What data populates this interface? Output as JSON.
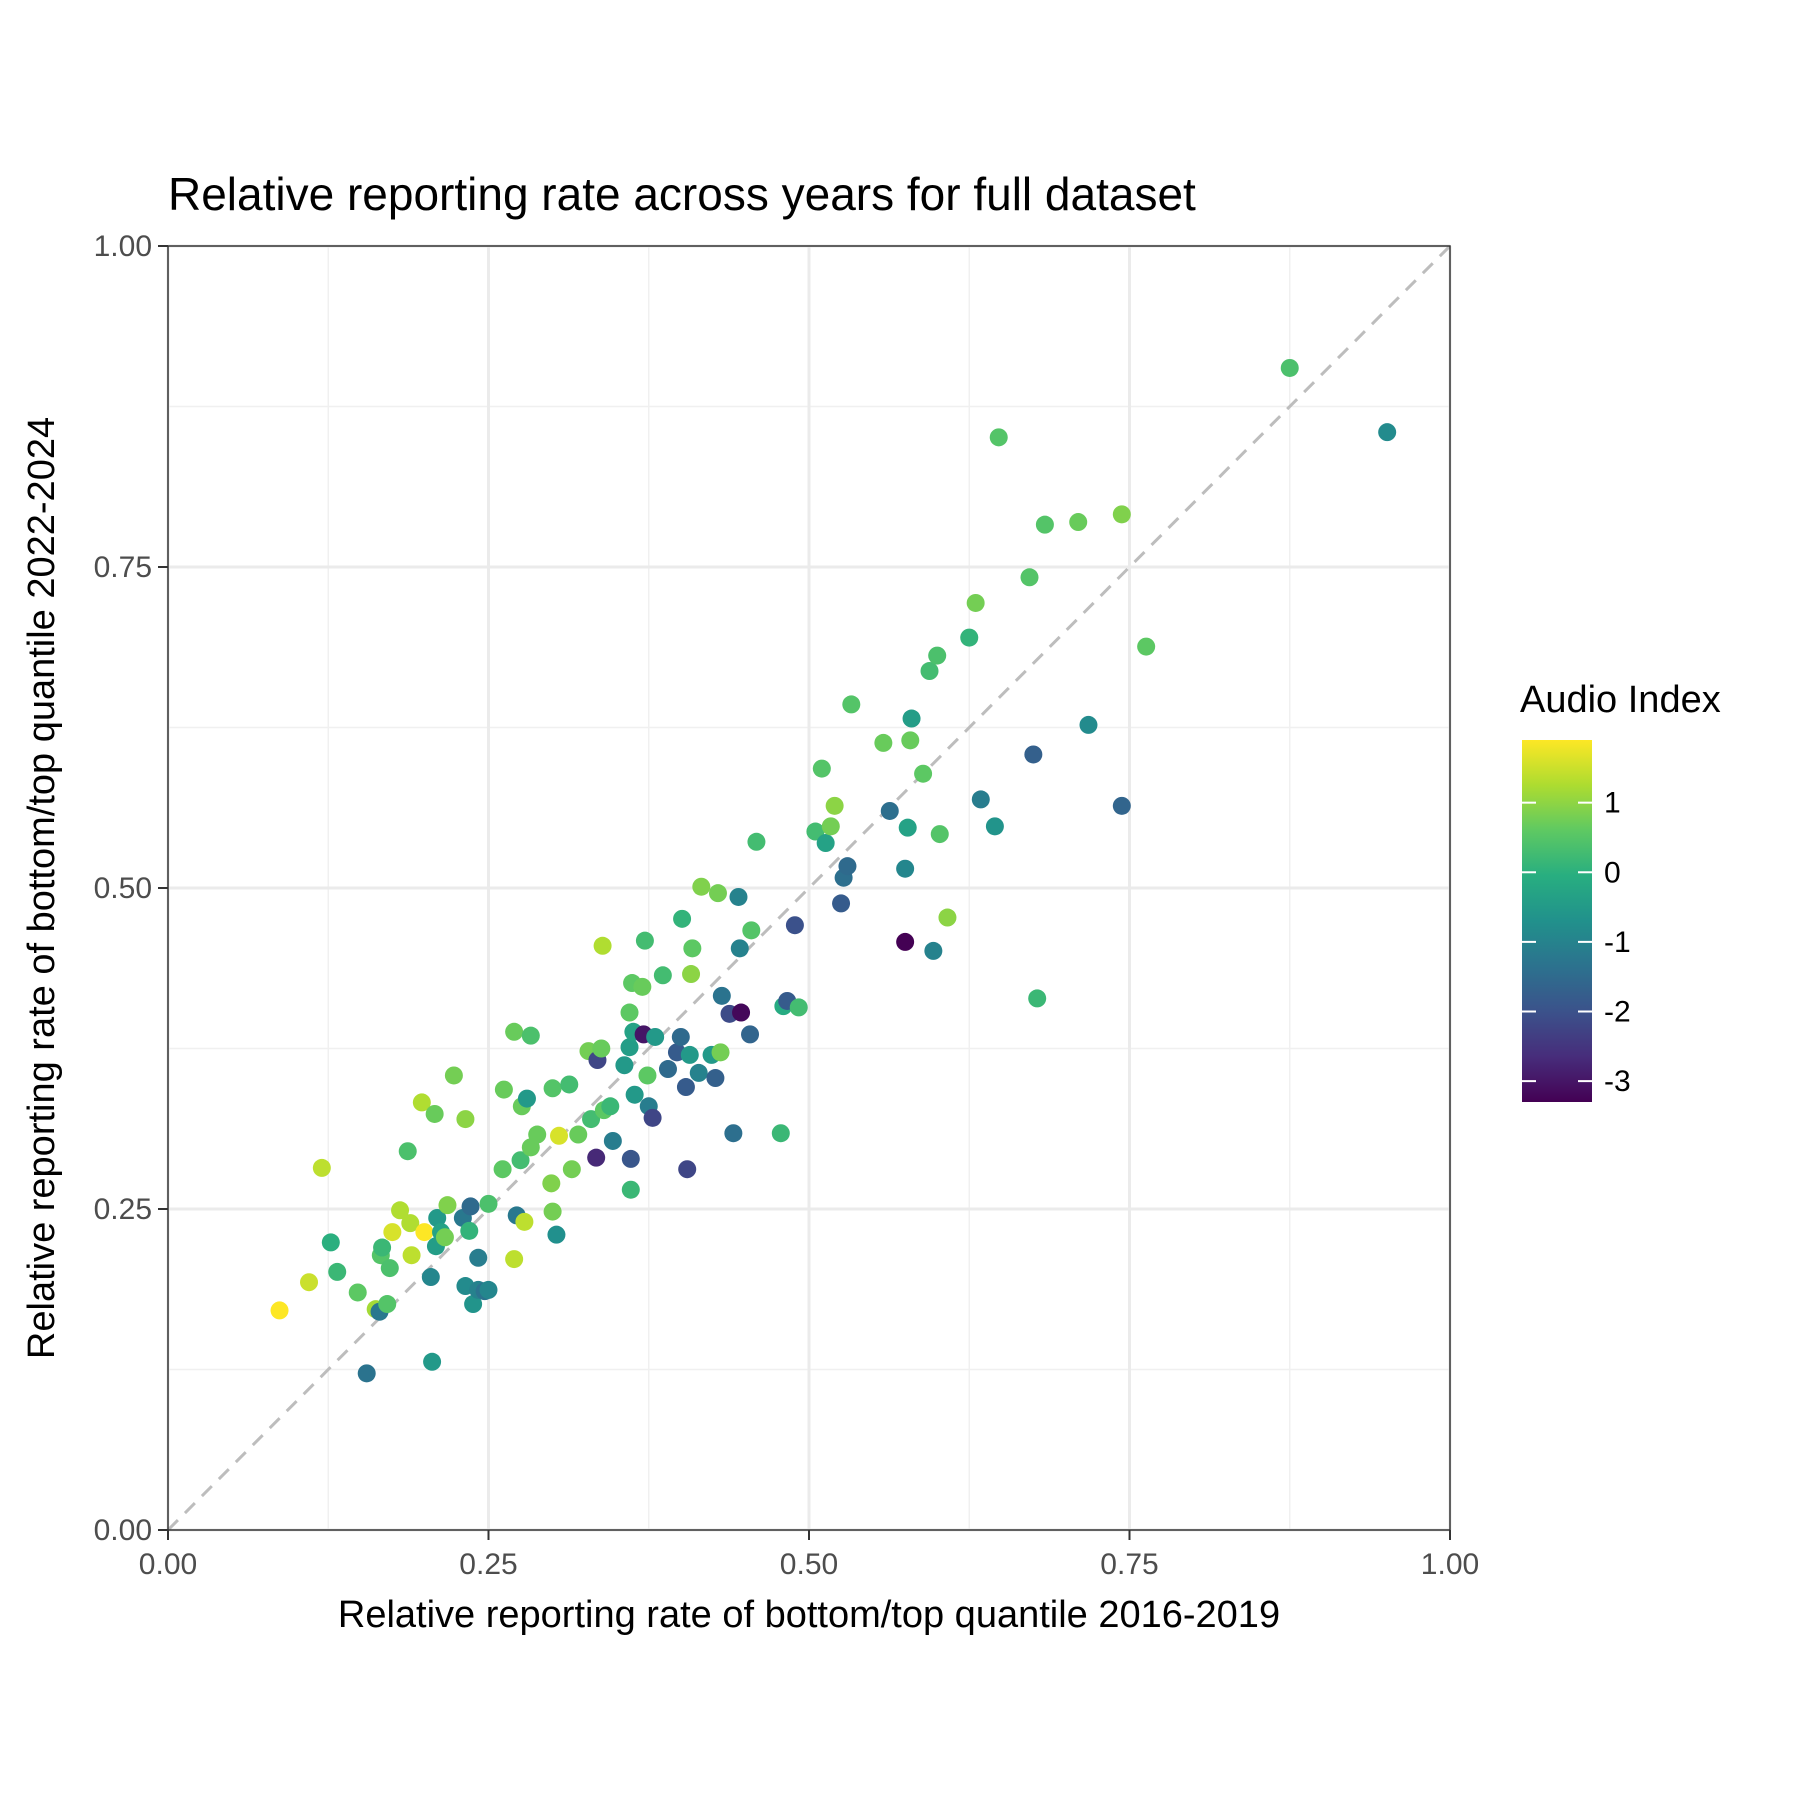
{
  "chart_data": {
    "type": "scatter",
    "title": "Relative reporting rate across years for full dataset",
    "xlabel": "Relative reporting rate of bottom/top quantile 2016-2019",
    "ylabel": "Relative reporting rate of bottom/top quantile 2022-2024",
    "xlim": [
      0,
      1
    ],
    "ylim": [
      0,
      1
    ],
    "x_ticks": [
      0,
      0.25,
      0.5,
      0.75,
      1
    ],
    "y_ticks": [
      0,
      0.25,
      0.5,
      0.75,
      1
    ],
    "x_tick_labels": [
      "0.00",
      "0.25",
      "0.50",
      "0.75",
      "1.00"
    ],
    "y_tick_labels": [
      "0.00",
      "0.25",
      "0.50",
      "0.75",
      "1.00"
    ],
    "grid": true,
    "theme": "bw",
    "reference_line": {
      "slope": 1,
      "intercept": 0,
      "style": "dashed",
      "color": "#bdbdbd"
    },
    "legend": {
      "title": "Audio Index",
      "position": "right",
      "type": "continuous colorbar",
      "palette": "viridis",
      "range": [
        -3.3,
        1.9
      ],
      "ticks": [
        1,
        0,
        -1,
        -2,
        -3
      ],
      "tick_labels": [
        "1",
        "0",
        "-1",
        "-2",
        "-3"
      ]
    },
    "points": [
      {
        "x": 0.087,
        "y": 0.171,
        "c": 1.9
      },
      {
        "x": 0.11,
        "y": 0.193,
        "c": 1.5
      },
      {
        "x": 0.12,
        "y": 0.282,
        "c": 1.4
      },
      {
        "x": 0.127,
        "y": 0.224,
        "c": 0.0
      },
      {
        "x": 0.132,
        "y": 0.201,
        "c": 0.2
      },
      {
        "x": 0.148,
        "y": 0.185,
        "c": 0.6
      },
      {
        "x": 0.155,
        "y": 0.122,
        "c": -1.3
      },
      {
        "x": 0.162,
        "y": 0.172,
        "c": 1.2
      },
      {
        "x": 0.165,
        "y": 0.17,
        "c": -1.2
      },
      {
        "x": 0.166,
        "y": 0.214,
        "c": 0.5
      },
      {
        "x": 0.167,
        "y": 0.22,
        "c": 0.2
      },
      {
        "x": 0.171,
        "y": 0.176,
        "c": 0.5
      },
      {
        "x": 0.173,
        "y": 0.204,
        "c": 0.4
      },
      {
        "x": 0.175,
        "y": 0.232,
        "c": 1.6
      },
      {
        "x": 0.181,
        "y": 0.249,
        "c": 1.3
      },
      {
        "x": 0.187,
        "y": 0.295,
        "c": 0.4
      },
      {
        "x": 0.189,
        "y": 0.239,
        "c": 1.3
      },
      {
        "x": 0.19,
        "y": 0.214,
        "c": 1.4
      },
      {
        "x": 0.198,
        "y": 0.333,
        "c": 1.3
      },
      {
        "x": 0.2,
        "y": 0.232,
        "c": 1.9
      },
      {
        "x": 0.205,
        "y": 0.197,
        "c": -0.9
      },
      {
        "x": 0.206,
        "y": 0.131,
        "c": -0.5
      },
      {
        "x": 0.208,
        "y": 0.324,
        "c": 0.7
      },
      {
        "x": 0.209,
        "y": 0.221,
        "c": -0.4
      },
      {
        "x": 0.21,
        "y": 0.243,
        "c": -0.5
      },
      {
        "x": 0.213,
        "y": 0.232,
        "c": -0.3
      },
      {
        "x": 0.216,
        "y": 0.228,
        "c": 0.8
      },
      {
        "x": 0.218,
        "y": 0.253,
        "c": 0.9
      },
      {
        "x": 0.223,
        "y": 0.354,
        "c": 0.8
      },
      {
        "x": 0.23,
        "y": 0.243,
        "c": -1.2
      },
      {
        "x": 0.232,
        "y": 0.19,
        "c": -0.8
      },
      {
        "x": 0.232,
        "y": 0.32,
        "c": 1.0
      },
      {
        "x": 0.235,
        "y": 0.233,
        "c": 0.1
      },
      {
        "x": 0.236,
        "y": 0.252,
        "c": -1.5
      },
      {
        "x": 0.238,
        "y": 0.176,
        "c": -0.6
      },
      {
        "x": 0.242,
        "y": 0.212,
        "c": -1.1
      },
      {
        "x": 0.242,
        "y": 0.187,
        "c": -1.0
      },
      {
        "x": 0.247,
        "y": 0.186,
        "c": -1.3
      },
      {
        "x": 0.25,
        "y": 0.187,
        "c": -0.9
      },
      {
        "x": 0.25,
        "y": 0.254,
        "c": 0.4
      },
      {
        "x": 0.261,
        "y": 0.281,
        "c": 0.6
      },
      {
        "x": 0.262,
        "y": 0.343,
        "c": 0.7
      },
      {
        "x": 0.27,
        "y": 0.211,
        "c": 1.4
      },
      {
        "x": 0.27,
        "y": 0.388,
        "c": 0.7
      },
      {
        "x": 0.272,
        "y": 0.245,
        "c": -1.2
      },
      {
        "x": 0.275,
        "y": 0.288,
        "c": 0.3
      },
      {
        "x": 0.276,
        "y": 0.33,
        "c": 0.7
      },
      {
        "x": 0.278,
        "y": 0.24,
        "c": 1.4
      },
      {
        "x": 0.28,
        "y": 0.336,
        "c": -0.5
      },
      {
        "x": 0.283,
        "y": 0.385,
        "c": 0.4
      },
      {
        "x": 0.283,
        "y": 0.298,
        "c": 0.7
      },
      {
        "x": 0.288,
        "y": 0.308,
        "c": 0.7
      },
      {
        "x": 0.299,
        "y": 0.27,
        "c": 0.9
      },
      {
        "x": 0.3,
        "y": 0.248,
        "c": 0.8
      },
      {
        "x": 0.3,
        "y": 0.344,
        "c": 0.5
      },
      {
        "x": 0.303,
        "y": 0.23,
        "c": -0.7
      },
      {
        "x": 0.305,
        "y": 0.307,
        "c": 1.6
      },
      {
        "x": 0.313,
        "y": 0.347,
        "c": 0.3
      },
      {
        "x": 0.315,
        "y": 0.281,
        "c": 0.8
      },
      {
        "x": 0.32,
        "y": 0.308,
        "c": 0.7
      },
      {
        "x": 0.328,
        "y": 0.373,
        "c": 0.8
      },
      {
        "x": 0.33,
        "y": 0.32,
        "c": 0.3
      },
      {
        "x": 0.334,
        "y": 0.29,
        "c": -2.7
      },
      {
        "x": 0.335,
        "y": 0.366,
        "c": -2.2
      },
      {
        "x": 0.338,
        "y": 0.375,
        "c": 0.7
      },
      {
        "x": 0.339,
        "y": 0.455,
        "c": 1.3
      },
      {
        "x": 0.34,
        "y": 0.327,
        "c": 0.6
      },
      {
        "x": 0.345,
        "y": 0.33,
        "c": 0.2
      },
      {
        "x": 0.347,
        "y": 0.303,
        "c": -1.1
      },
      {
        "x": 0.356,
        "y": 0.362,
        "c": -0.5
      },
      {
        "x": 0.36,
        "y": 0.403,
        "c": 0.6
      },
      {
        "x": 0.36,
        "y": 0.376,
        "c": -0.4
      },
      {
        "x": 0.361,
        "y": 0.289,
        "c": -1.9
      },
      {
        "x": 0.361,
        "y": 0.265,
        "c": 0.2
      },
      {
        "x": 0.362,
        "y": 0.426,
        "c": 0.6
      },
      {
        "x": 0.363,
        "y": 0.388,
        "c": -0.3
      },
      {
        "x": 0.364,
        "y": 0.339,
        "c": -0.5
      },
      {
        "x": 0.37,
        "y": 0.423,
        "c": 0.7
      },
      {
        "x": 0.371,
        "y": 0.386,
        "c": -3.0
      },
      {
        "x": 0.372,
        "y": 0.459,
        "c": 0.3
      },
      {
        "x": 0.374,
        "y": 0.354,
        "c": 0.6
      },
      {
        "x": 0.375,
        "y": 0.33,
        "c": -1.1
      },
      {
        "x": 0.378,
        "y": 0.321,
        "c": -2.2
      },
      {
        "x": 0.38,
        "y": 0.384,
        "c": -0.5
      },
      {
        "x": 0.386,
        "y": 0.432,
        "c": 0.3
      },
      {
        "x": 0.39,
        "y": 0.359,
        "c": -1.5
      },
      {
        "x": 0.397,
        "y": 0.372,
        "c": -1.8
      },
      {
        "x": 0.4,
        "y": 0.384,
        "c": -1.5
      },
      {
        "x": 0.401,
        "y": 0.476,
        "c": 0.1
      },
      {
        "x": 0.404,
        "y": 0.345,
        "c": -1.8
      },
      {
        "x": 0.405,
        "y": 0.281,
        "c": -2.2
      },
      {
        "x": 0.407,
        "y": 0.37,
        "c": -0.5
      },
      {
        "x": 0.408,
        "y": 0.433,
        "c": 1.0
      },
      {
        "x": 0.409,
        "y": 0.453,
        "c": 0.6
      },
      {
        "x": 0.414,
        "y": 0.356,
        "c": -1.0
      },
      {
        "x": 0.416,
        "y": 0.501,
        "c": 0.9
      },
      {
        "x": 0.424,
        "y": 0.37,
        "c": -0.5
      },
      {
        "x": 0.427,
        "y": 0.352,
        "c": -1.7
      },
      {
        "x": 0.429,
        "y": 0.496,
        "c": 0.8
      },
      {
        "x": 0.431,
        "y": 0.372,
        "c": 0.8
      },
      {
        "x": 0.432,
        "y": 0.416,
        "c": -1.3
      },
      {
        "x": 0.438,
        "y": 0.402,
        "c": -2.1
      },
      {
        "x": 0.441,
        "y": 0.309,
        "c": -1.4
      },
      {
        "x": 0.445,
        "y": 0.493,
        "c": -1.0
      },
      {
        "x": 0.446,
        "y": 0.453,
        "c": -1.0
      },
      {
        "x": 0.447,
        "y": 0.403,
        "c": -3.2
      },
      {
        "x": 0.454,
        "y": 0.386,
        "c": -1.6
      },
      {
        "x": 0.455,
        "y": 0.467,
        "c": 0.5
      },
      {
        "x": 0.459,
        "y": 0.536,
        "c": 0.3
      },
      {
        "x": 0.478,
        "y": 0.309,
        "c": 0.2
      },
      {
        "x": 0.48,
        "y": 0.408,
        "c": -0.1
      },
      {
        "x": 0.483,
        "y": 0.412,
        "c": -1.8
      },
      {
        "x": 0.489,
        "y": 0.471,
        "c": -2.0
      },
      {
        "x": 0.492,
        "y": 0.407,
        "c": 0.3
      },
      {
        "x": 0.505,
        "y": 0.544,
        "c": 0.3
      },
      {
        "x": 0.51,
        "y": 0.593,
        "c": 0.5
      },
      {
        "x": 0.513,
        "y": 0.535,
        "c": -0.3
      },
      {
        "x": 0.517,
        "y": 0.548,
        "c": 0.8
      },
      {
        "x": 0.52,
        "y": 0.564,
        "c": 1.0
      },
      {
        "x": 0.525,
        "y": 0.488,
        "c": -1.8
      },
      {
        "x": 0.527,
        "y": 0.508,
        "c": -1.4
      },
      {
        "x": 0.53,
        "y": 0.517,
        "c": -1.5
      },
      {
        "x": 0.533,
        "y": 0.643,
        "c": 0.5
      },
      {
        "x": 0.558,
        "y": 0.613,
        "c": 0.7
      },
      {
        "x": 0.563,
        "y": 0.56,
        "c": -1.4
      },
      {
        "x": 0.575,
        "y": 0.458,
        "c": -3.3
      },
      {
        "x": 0.575,
        "y": 0.515,
        "c": -0.9
      },
      {
        "x": 0.577,
        "y": 0.547,
        "c": -0.3
      },
      {
        "x": 0.579,
        "y": 0.615,
        "c": 0.7
      },
      {
        "x": 0.58,
        "y": 0.632,
        "c": -0.4
      },
      {
        "x": 0.589,
        "y": 0.589,
        "c": 0.6
      },
      {
        "x": 0.594,
        "y": 0.669,
        "c": 0.3
      },
      {
        "x": 0.597,
        "y": 0.451,
        "c": -1.0
      },
      {
        "x": 0.6,
        "y": 0.681,
        "c": 0.4
      },
      {
        "x": 0.602,
        "y": 0.542,
        "c": 0.5
      },
      {
        "x": 0.608,
        "y": 0.477,
        "c": 1.0
      },
      {
        "x": 0.625,
        "y": 0.695,
        "c": 0.1
      },
      {
        "x": 0.63,
        "y": 0.722,
        "c": 0.8
      },
      {
        "x": 0.634,
        "y": 0.569,
        "c": -1.1
      },
      {
        "x": 0.645,
        "y": 0.548,
        "c": -0.6
      },
      {
        "x": 0.648,
        "y": 0.851,
        "c": 0.5
      },
      {
        "x": 0.672,
        "y": 0.742,
        "c": 0.5
      },
      {
        "x": 0.675,
        "y": 0.604,
        "c": -1.7
      },
      {
        "x": 0.678,
        "y": 0.414,
        "c": 0.2
      },
      {
        "x": 0.684,
        "y": 0.783,
        "c": 0.5
      },
      {
        "x": 0.71,
        "y": 0.785,
        "c": 0.7
      },
      {
        "x": 0.718,
        "y": 0.627,
        "c": -0.8
      },
      {
        "x": 0.744,
        "y": 0.564,
        "c": -1.6
      },
      {
        "x": 0.744,
        "y": 0.791,
        "c": 0.9
      },
      {
        "x": 0.763,
        "y": 0.688,
        "c": 0.6
      },
      {
        "x": 0.875,
        "y": 0.905,
        "c": 0.4
      },
      {
        "x": 0.951,
        "y": 0.855,
        "c": -0.8
      }
    ]
  }
}
